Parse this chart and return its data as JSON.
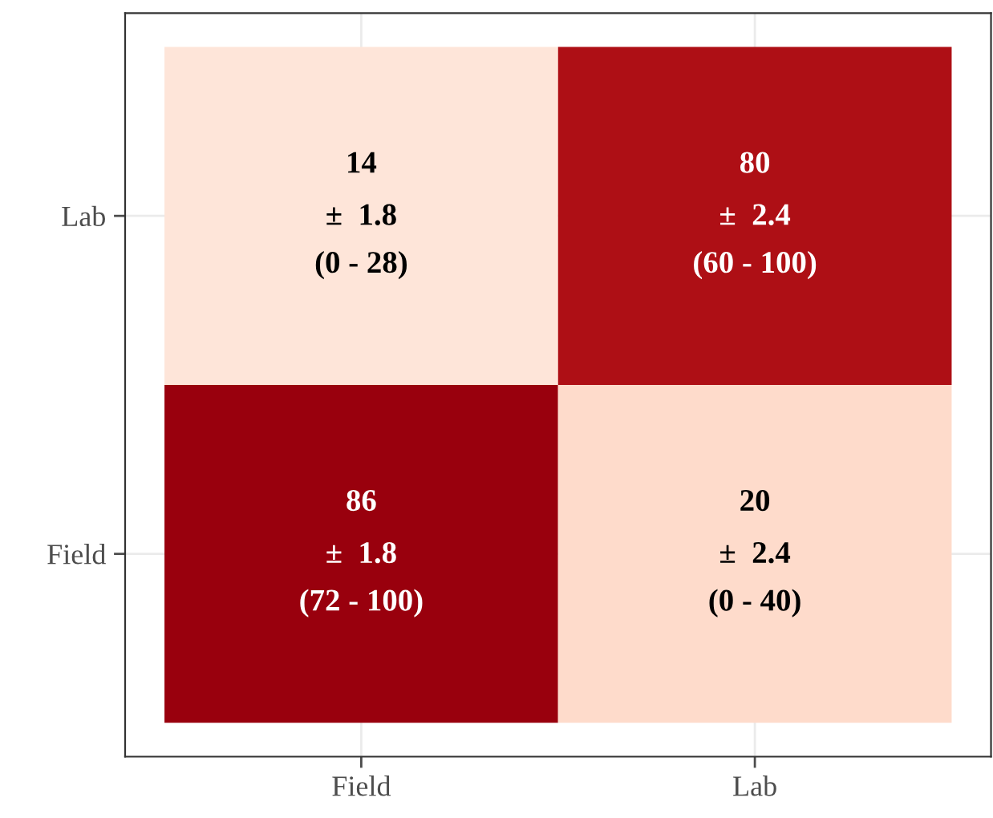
{
  "chart_data": {
    "type": "heatmap",
    "categories": [
      "Field",
      "Lab"
    ],
    "y_categories": [
      "Lab",
      "Field"
    ],
    "cells": [
      [
        14,
        80
      ],
      [
        86,
        20
      ]
    ],
    "data_labels": true,
    "annotations": [
      "±  1.8\n(0 - 28)",
      "±  2.4\n(60 - 100)",
      "±  1.8\n(72 - 100)",
      "±  2.4\n(0 - 40)"
    ],
    "grid": true
  }
}
